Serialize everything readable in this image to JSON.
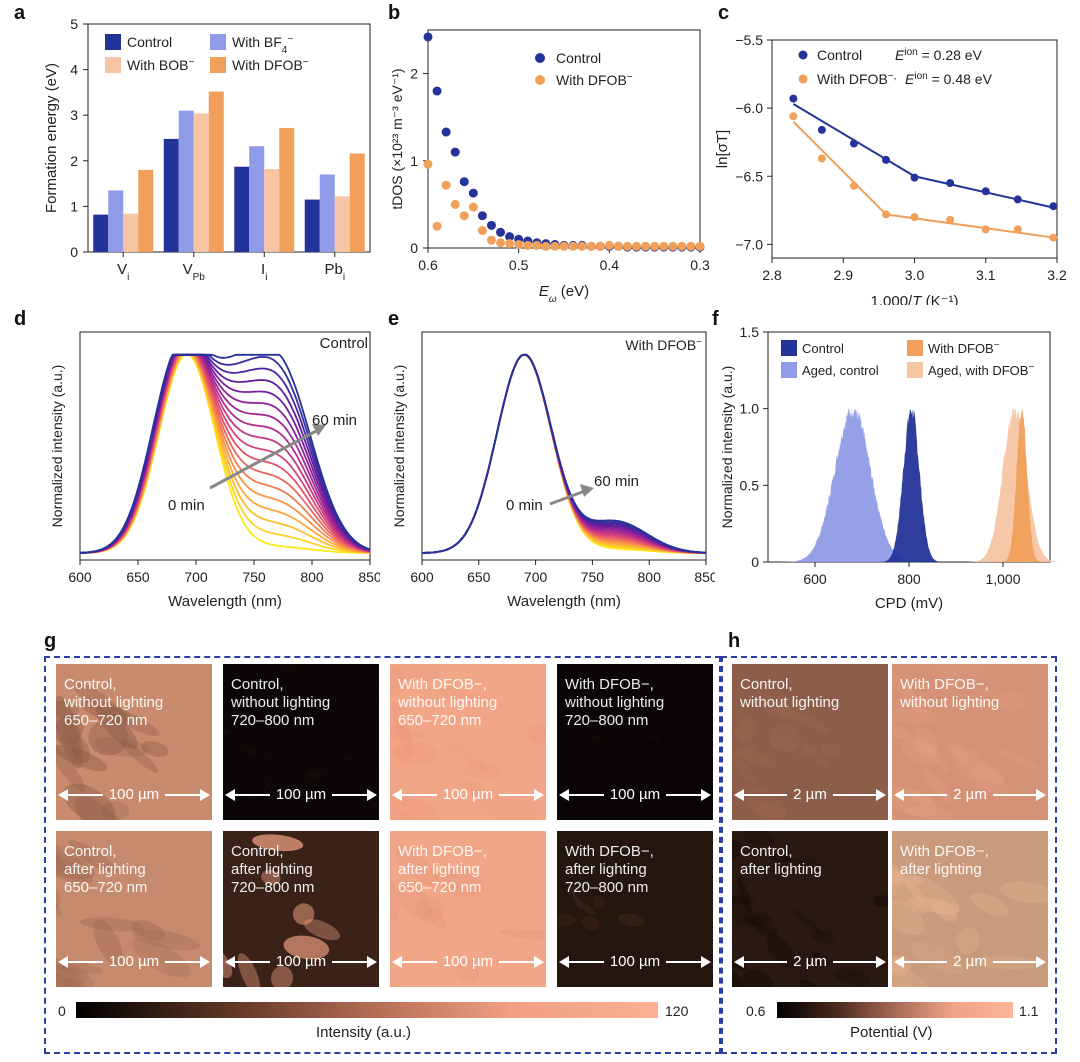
{
  "panel_labels": {
    "a": "a",
    "b": "b",
    "c": "c",
    "d": "d",
    "e": "e",
    "f": "f",
    "g": "g",
    "h": "h"
  },
  "colors": {
    "control": "#24339a",
    "bf4": "#8f9be6",
    "bob": "#f6c5a3",
    "dfob": "#f0a05a",
    "gray_arrow": "#888888",
    "box": "#2b3ea6"
  },
  "chart_data": [
    {
      "id": "a",
      "type": "bar",
      "ylabel": "Formation energy (eV)",
      "ylim": [
        0,
        5
      ],
      "yticks": [
        0,
        1,
        2,
        3,
        4,
        5
      ],
      "categories": [
        "Vi",
        "VPb",
        "Ii",
        "Pbi"
      ],
      "category_main": [
        "V",
        "V",
        "I",
        "Pb"
      ],
      "category_sub": [
        "i",
        "Pb",
        "i",
        "i"
      ],
      "legend": {
        "control": "Control",
        "bf4": "With BF",
        "bob": "With BOB",
        "dfob": "With DFOB",
        "bf4_sub": "4",
        "bf4_sup": "−",
        "bob_sup": "−",
        "dfob_sup": "−"
      },
      "series": [
        {
          "name": "Control",
          "key": "control",
          "values": [
            0.82,
            2.48,
            1.87,
            1.15
          ]
        },
        {
          "name": "With BF4−",
          "key": "bf4",
          "values": [
            1.35,
            3.1,
            2.32,
            1.7
          ]
        },
        {
          "name": "With BOB−",
          "key": "bob",
          "values": [
            0.84,
            3.04,
            1.82,
            1.22
          ]
        },
        {
          "name": "With DFOB−",
          "key": "dfob",
          "values": [
            1.8,
            3.52,
            2.72,
            2.16
          ]
        }
      ]
    },
    {
      "id": "b",
      "type": "scatter",
      "ylabel": "tDOS (×10²³ m⁻³ eV⁻¹)",
      "xlabel": "Eω (eV)",
      "xlabel_main": "E",
      "xlabel_sub": "ω",
      "xlabel_unit": " (eV)",
      "xlim": [
        0.6,
        0.3
      ],
      "ylim": [
        0,
        2.5
      ],
      "xticks": [
        "0.6",
        "0.5",
        "0.4",
        "0.3"
      ],
      "xtick_values": [
        0.6,
        0.5,
        0.4,
        0.3
      ],
      "yticks": [
        0,
        1,
        2
      ],
      "legend": {
        "control": "Control",
        "dfob": "With DFOB",
        "dfob_sup": "−"
      },
      "series": [
        {
          "name": "Control",
          "key": "control",
          "x": [
            0.6,
            0.59,
            0.58,
            0.57,
            0.56,
            0.55,
            0.54,
            0.53,
            0.52,
            0.51,
            0.5,
            0.49,
            0.48,
            0.47,
            0.46,
            0.45,
            0.44,
            0.43,
            0.42,
            0.41,
            0.4,
            0.39,
            0.38,
            0.37,
            0.36,
            0.35,
            0.34,
            0.33,
            0.32,
            0.31,
            0.3
          ],
          "y": [
            2.42,
            1.8,
            1.33,
            1.1,
            0.76,
            0.63,
            0.37,
            0.26,
            0.18,
            0.13,
            0.1,
            0.08,
            0.06,
            0.05,
            0.04,
            0.03,
            0.03,
            0.03,
            0.02,
            0.02,
            0.02,
            0.02,
            0.01,
            0.01,
            0.01,
            0.01,
            0.01,
            0.01,
            0.01,
            0.01,
            0.01
          ]
        },
        {
          "name": "With DFOB−",
          "key": "dfob",
          "x": [
            0.6,
            0.59,
            0.58,
            0.57,
            0.56,
            0.55,
            0.54,
            0.53,
            0.52,
            0.51,
            0.5,
            0.49,
            0.48,
            0.47,
            0.46,
            0.45,
            0.44,
            0.43,
            0.42,
            0.41,
            0.4,
            0.39,
            0.38,
            0.37,
            0.36,
            0.35,
            0.34,
            0.33,
            0.32,
            0.31,
            0.3
          ],
          "y": [
            0.96,
            0.25,
            0.72,
            0.5,
            0.37,
            0.47,
            0.2,
            0.09,
            0.06,
            0.05,
            0.04,
            0.03,
            0.03,
            0.02,
            0.02,
            0.02,
            0.02,
            0.02,
            0.02,
            0.02,
            0.03,
            0.02,
            0.02,
            0.02,
            0.02,
            0.02,
            0.02,
            0.02,
            0.02,
            0.02,
            0.02
          ]
        }
      ]
    },
    {
      "id": "c",
      "type": "scatter",
      "ylabel": "ln[σT]",
      "xlabel": "1,000/T (K⁻¹)",
      "xlabel_pre": "1,000/",
      "xlabel_T": "T",
      "xlabel_post": " (K⁻¹)",
      "xlim": [
        2.8,
        3.2
      ],
      "ylim": [
        -7.1,
        -5.5
      ],
      "xticks": [
        2.8,
        2.9,
        3.0,
        3.1,
        3.2
      ],
      "xtick_labels": [
        "2.8",
        "2.9",
        "3.0",
        "3.1",
        "3.2"
      ],
      "yticks": [
        -7.0,
        -6.5,
        -6.0,
        -5.5
      ],
      "ytick_labels": [
        "−7.0",
        "−6.5",
        "−6.0",
        "−5.5"
      ],
      "legend": {
        "control": "Control",
        "dfob": "With DFOB",
        "dfob_sup": "−,",
        "ea_control": " = 0.28 eV",
        "ea_dfob": " = 0.48 eV",
        "ea": "E",
        "ea_sup": "ion",
        "ea_sub": "a"
      },
      "series": [
        {
          "name": "Control",
          "key": "control",
          "x": [
            2.83,
            2.87,
            2.915,
            2.96,
            3.0,
            3.05,
            3.1,
            3.145,
            3.195
          ],
          "y": [
            -5.93,
            -6.16,
            -6.26,
            -6.38,
            -6.51,
            -6.55,
            -6.61,
            -6.67,
            -6.72
          ],
          "fit": [
            [
              2.83,
              -5.97
            ],
            [
              3.0,
              -6.5
            ],
            [
              3.195,
              -6.73
            ]
          ]
        },
        {
          "name": "With DFOB−",
          "key": "dfob",
          "x": [
            2.83,
            2.87,
            2.915,
            2.96,
            3.0,
            3.05,
            3.1,
            3.145,
            3.195
          ],
          "y": [
            -6.06,
            -6.37,
            -6.57,
            -6.78,
            -6.8,
            -6.82,
            -6.89,
            -6.89,
            -6.95
          ],
          "fit": [
            [
              2.83,
              -6.1
            ],
            [
              2.96,
              -6.78
            ],
            [
              3.195,
              -6.95
            ]
          ]
        }
      ]
    },
    {
      "id": "d",
      "type": "line",
      "ylabel": "Normalized intensity (a.u.)",
      "xlabel": "Wavelength (nm)",
      "xlim": [
        600,
        850
      ],
      "xticks": [
        600,
        650,
        700,
        750,
        800,
        850
      ],
      "title": "Control",
      "annotation_start": "0 min",
      "annotation_end": "60 min",
      "n_curves": 18,
      "peak1_nm": 692,
      "peak2_nm": 772,
      "peak2_start": 0.03,
      "peak2_end": 0.92,
      "valley_start": 0.05,
      "valley_end": 0.72,
      "gradient": [
        "#ffe81a",
        "#fca040",
        "#e8536a",
        "#b02a8e",
        "#6a1ba0",
        "#24339a"
      ]
    },
    {
      "id": "e",
      "type": "line",
      "ylabel": "Normalized intensity (a.u.)",
      "xlabel": "Wavelength (nm)",
      "xlim": [
        600,
        850
      ],
      "xticks": [
        600,
        650,
        700,
        750,
        800,
        850
      ],
      "title": "With DFOB−",
      "title_main": "With DFOB",
      "title_sup": "−",
      "annotation_start": "0 min",
      "annotation_end": "60 min",
      "n_curves": 18,
      "peak1_nm": 690,
      "peak2_nm": 770,
      "peak2_start": 0.02,
      "peak2_end": 0.16,
      "gradient": [
        "#ffe81a",
        "#fca040",
        "#e8536a",
        "#b02a8e",
        "#6a1ba0",
        "#24339a"
      ]
    },
    {
      "id": "f",
      "type": "histogram",
      "ylabel": "Normalized intensity (a.u.)",
      "xlabel": "CPD (mV)",
      "xlim": [
        500,
        1100
      ],
      "xticks": [
        600,
        800,
        1000
      ],
      "xtick_labels": [
        "600",
        "800",
        "1,000"
      ],
      "ylim": [
        0,
        1.5
      ],
      "yticks": [
        0,
        0.5,
        1.0,
        1.5
      ],
      "ytick_labels": [
        "0",
        "0.5",
        "1.0",
        "1.5"
      ],
      "legend": {
        "control": "Control",
        "aged_control": "Aged, control",
        "dfob": "With DFOB",
        "aged_dfob": "Aged, with DFOB",
        "sup": "−"
      },
      "series": [
        {
          "name": "Aged, control",
          "key": "bf4",
          "center": 680,
          "sigma": 38
        },
        {
          "name": "Control",
          "key": "control",
          "center": 805,
          "sigma": 17
        },
        {
          "name": "Aged, with DFOB−",
          "key": "bob",
          "center": 1025,
          "sigma": 25
        },
        {
          "name": "With DFOB−",
          "key": "dfob",
          "center": 1040,
          "sigma": 11
        }
      ]
    }
  ],
  "panel_g": {
    "tiles": [
      {
        "line1": "Control,",
        "line2": "without lighting",
        "line3": "650–720 nm",
        "scale": "100 µm"
      },
      {
        "line1": "Control,",
        "line2": "without lighting",
        "line3": "720–800 nm",
        "scale": "100 µm"
      },
      {
        "line1": "With DFOB−,",
        "line2": "without lighting",
        "line3": "650–720 nm",
        "scale": "100 µm"
      },
      {
        "line1": "With DFOB−,",
        "line2": "without lighting",
        "line3": "720–800 nm",
        "scale": "100 µm"
      },
      {
        "line1": "Control,",
        "line2": "after lighting",
        "line3": "650–720 nm",
        "scale": "100 µm"
      },
      {
        "line1": "Control,",
        "line2": "after lighting",
        "line3": "720–800 nm",
        "scale": "100 µm"
      },
      {
        "line1": "With DFOB−,",
        "line2": "after lighting",
        "line3": "650–720 nm",
        "scale": "100 µm"
      },
      {
        "line1": "With DFOB−,",
        "line2": "after lighting",
        "line3": "720–800 nm",
        "scale": "100 µm"
      }
    ],
    "colorbar": {
      "min": "0",
      "max": "120",
      "label": "Intensity (a.u.)"
    }
  },
  "panel_h": {
    "tiles": [
      {
        "line1": "Control,",
        "line2": "without lighting",
        "scale": "2 µm"
      },
      {
        "line1": "With DFOB−,",
        "line2": "without lighting",
        "scale": "2 µm"
      },
      {
        "line1": "Control,",
        "line2": "after lighting",
        "scale": "2 µm"
      },
      {
        "line1": "With DFOB−,",
        "line2": "after lighting",
        "scale": "2 µm"
      }
    ],
    "colorbar": {
      "min": "0.6",
      "max": "1.1",
      "label": "Potential (V)"
    }
  }
}
